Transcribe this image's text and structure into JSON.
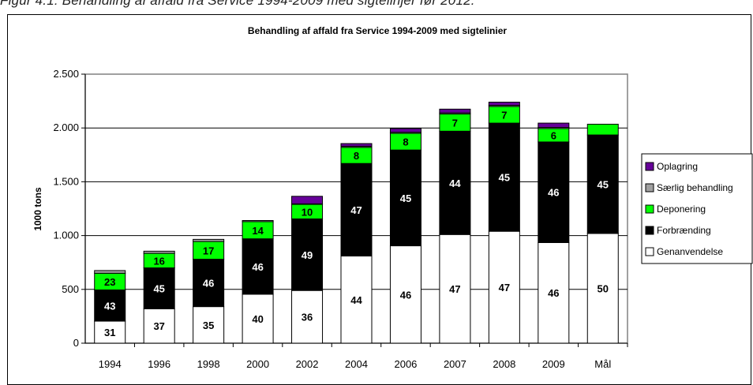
{
  "caption": "Figur 4.1: Behandling af affald fra Service 1994-2009 med sigtelinjer før 2012.",
  "chart_data": {
    "type": "bar",
    "stacked": true,
    "title": "Behandling af affald fra Service 1994-2009 med sigtelinier",
    "xlabel": "",
    "ylabel": "1000 tons",
    "ylim": [
      0,
      2500
    ],
    "yticks": [
      0,
      500,
      1000,
      1500,
      2000,
      2500
    ],
    "ytick_labels": [
      "0",
      "500",
      "1.000",
      "1.500",
      "2.000",
      "2.500"
    ],
    "grid": true,
    "legend_position": "right",
    "categories": [
      "1994",
      "1996",
      "1998",
      "2000",
      "2002",
      "2004",
      "2006",
      "2007",
      "2008",
      "2009",
      "Mål"
    ],
    "series": [
      {
        "name": "Genanvendelse",
        "color": "#ffffff",
        "text_color": "#000000",
        "values": [
          205,
          320,
          340,
          455,
          490,
          810,
          905,
          1010,
          1040,
          935,
          1020
        ],
        "labels": [
          "31",
          "37",
          "35",
          "40",
          "36",
          "44",
          "46",
          "47",
          "47",
          "46",
          "50"
        ]
      },
      {
        "name": "Forbrænding",
        "color": "#000000",
        "text_color": "#ffffff",
        "values": [
          290,
          380,
          440,
          515,
          665,
          860,
          890,
          960,
          1005,
          935,
          915
        ],
        "labels": [
          "43",
          "45",
          "46",
          "46",
          "49",
          "47",
          "45",
          "44",
          "45",
          "46",
          "45"
        ]
      },
      {
        "name": "Deponering",
        "color": "#00ff00",
        "text_color": "#000000",
        "values": [
          155,
          135,
          165,
          160,
          135,
          150,
          155,
          160,
          155,
          125,
          100
        ],
        "labels": [
          "23",
          "16",
          "17",
          "14",
          "10",
          "8",
          "8",
          "7",
          "7",
          "6",
          ""
        ]
      },
      {
        "name": "Særlig behandling",
        "color": "#a0a0a0",
        "text_color": "#000000",
        "values": [
          25,
          20,
          20,
          10,
          5,
          10,
          10,
          10,
          10,
          10,
          0
        ],
        "labels": [
          "",
          "",
          "",
          "",
          "",
          "",
          "",
          "",
          "",
          "",
          ""
        ]
      },
      {
        "name": "Oplagring",
        "color": "#660099",
        "text_color": "#ffffff",
        "values": [
          0,
          0,
          0,
          0,
          70,
          25,
          35,
          35,
          30,
          40,
          0
        ],
        "labels": [
          "",
          "",
          "",
          "",
          "",
          "",
          "",
          "",
          "",
          "",
          ""
        ]
      }
    ]
  }
}
